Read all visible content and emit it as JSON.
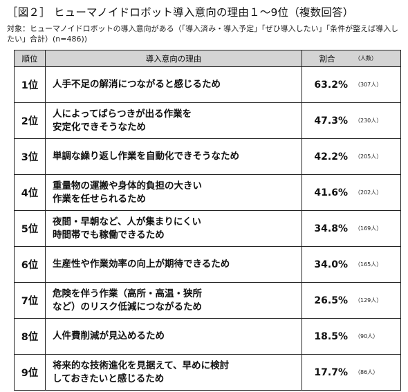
{
  "title": "［図２］ ヒューマノイドロボット導入意向の理由１〜9位（複数回答）",
  "subtitle": "対象：ヒューマノイドロボットの導入意向がある（「導入済み・導入予定」「ぜひ導入したい」「条件が整えば導入したい」合計）(n=486))",
  "chart_data": {
    "type": "table",
    "headers": {
      "rank": "順位",
      "reason": "導入意向の理由",
      "pct": "割合",
      "count": "（人数）"
    },
    "rows": [
      {
        "rank": "1位",
        "reason": "人手不足の解消につながると感じるため",
        "value": 63.2,
        "pct": "63.2%",
        "count": "（307人）"
      },
      {
        "rank": "2位",
        "reason": "人によってばらつきが出る作業を\n安定化できそうなため",
        "value": 47.3,
        "pct": "47.3%",
        "count": "（230人）"
      },
      {
        "rank": "3位",
        "reason": "単調な繰り返し作業を自動化できそうなため",
        "value": 42.2,
        "pct": "42.2%",
        "count": "（205人）"
      },
      {
        "rank": "4位",
        "reason": "重量物の運搬や身体的負担の大きい\n作業を任せられるため",
        "value": 41.6,
        "pct": "41.6%",
        "count": "（202人）"
      },
      {
        "rank": "5位",
        "reason": "夜間・早朝など、人が集まりにくい\n時間帯でも稼働できるため",
        "value": 34.8,
        "pct": "34.8%",
        "count": "（169人）"
      },
      {
        "rank": "6位",
        "reason": "生産性や作業効率の向上が期待できるため",
        "value": 34.0,
        "pct": "34.0%",
        "count": "（165人）"
      },
      {
        "rank": "7位",
        "reason": "危険を伴う作業（高所・高温・狭所\nなど）のリスク低減につながるため",
        "value": 26.5,
        "pct": "26.5%",
        "count": "（129人）"
      },
      {
        "rank": "8位",
        "reason": "人件費削減が見込めるため",
        "value": 18.5,
        "pct": "18.5%",
        "count": "（90人）"
      },
      {
        "rank": "9位",
        "reason": "将来的な技術進化を見据えて、早めに検討\nしておきたいと感じるため",
        "value": 17.7,
        "pct": "17.7%",
        "count": "（86人）"
      }
    ]
  }
}
